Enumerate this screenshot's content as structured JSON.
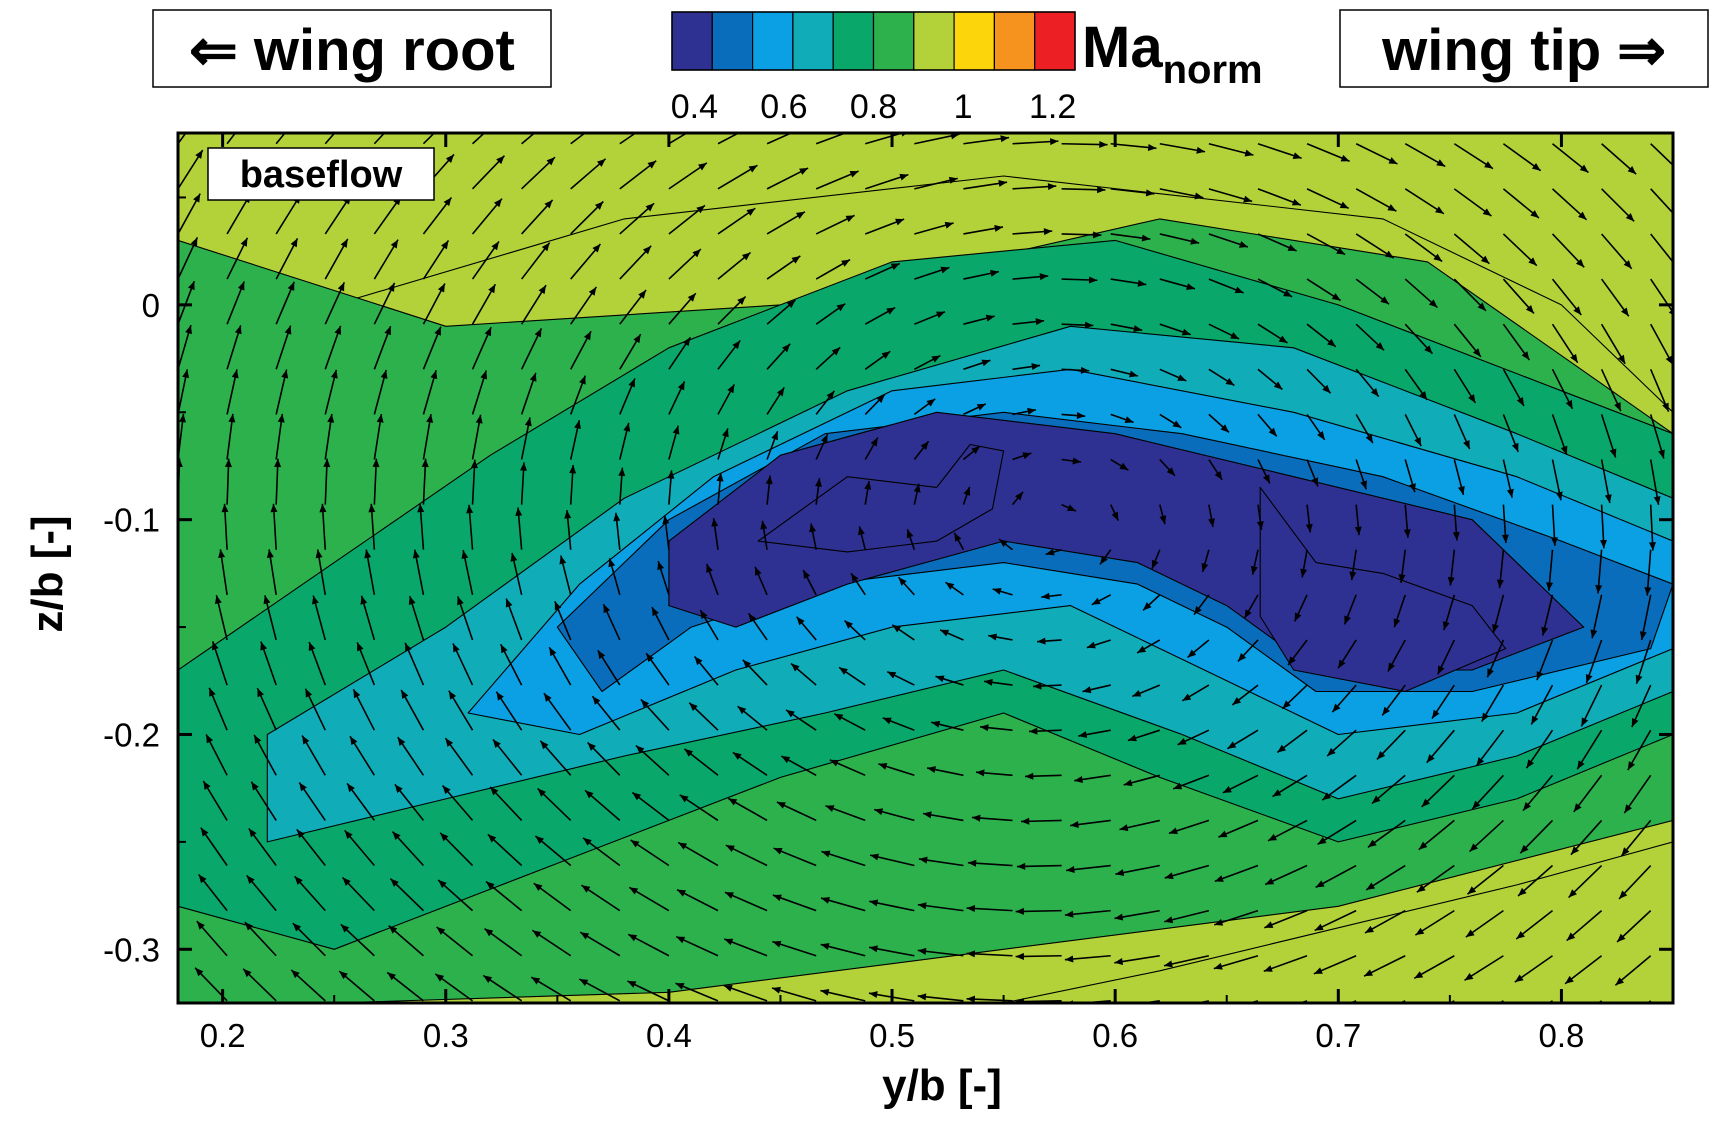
{
  "chart_data": {
    "type": "contour_vector",
    "colorbar": {
      "title": "Ma",
      "title_sub": "norm",
      "tick_labels": [
        "0.4",
        "0.6",
        "0.8",
        "1",
        "1.2"
      ],
      "tick_values": [
        0.4,
        0.6,
        0.8,
        1.0,
        1.2
      ],
      "levels": [
        0.35,
        0.45,
        0.55,
        0.65,
        0.75,
        0.85,
        0.95,
        1.05,
        1.15,
        1.25
      ],
      "colors": [
        "#2e3192",
        "#0a6dbc",
        "#0aa0e3",
        "#10adb9",
        "#09a86a",
        "#2db14c",
        "#b3d23a",
        "#fcd60a",
        "#f6921e",
        "#ec1f25"
      ]
    },
    "annotations": {
      "left_label": "⇐ wing root",
      "right_label": "wing tip ⇒",
      "case_label": "baseflow"
    },
    "xlabel": "y/b [-]",
    "ylabel": "z/b [-]",
    "xlim": [
      0.18,
      0.85
    ],
    "ylim": [
      -0.325,
      0.08
    ],
    "x_ticks": [
      0.2,
      0.3,
      0.4,
      0.5,
      0.6,
      0.7,
      0.8
    ],
    "x_tick_labels": [
      "0.2",
      "0.3",
      "0.4",
      "0.5",
      "0.6",
      "0.7",
      "0.8"
    ],
    "y_ticks": [
      0,
      -0.1,
      -0.2,
      -0.3
    ],
    "y_tick_labels": [
      "0",
      "-0.1",
      "-0.2",
      "-0.3"
    ],
    "contour_regions": [
      {
        "level": 1.0,
        "name": "yellow-outer-top",
        "polygon": [
          [
            0.18,
            0.08
          ],
          [
            0.85,
            0.08
          ],
          [
            0.85,
            -0.05
          ],
          [
            0.8,
            0.0
          ],
          [
            0.72,
            0.04
          ],
          [
            0.55,
            0.06
          ],
          [
            0.38,
            0.04
          ],
          [
            0.25,
            0.0
          ],
          [
            0.18,
            -0.07
          ]
        ]
      },
      {
        "level": 1.0,
        "name": "yellow-outer-bottom",
        "polygon": [
          [
            0.18,
            -0.325
          ],
          [
            0.85,
            -0.325
          ],
          [
            0.85,
            -0.25
          ],
          [
            0.78,
            -0.27
          ],
          [
            0.7,
            -0.29
          ],
          [
            0.62,
            -0.31
          ],
          [
            0.55,
            -0.325
          ]
        ]
      },
      {
        "level": 0.9,
        "name": "light-green",
        "polygon": [
          [
            0.18,
            0.03
          ],
          [
            0.3,
            -0.01
          ],
          [
            0.45,
            0.0
          ],
          [
            0.62,
            0.04
          ],
          [
            0.74,
            0.02
          ],
          [
            0.85,
            -0.06
          ],
          [
            0.85,
            -0.24
          ],
          [
            0.7,
            -0.28
          ],
          [
            0.55,
            -0.3
          ],
          [
            0.4,
            -0.32
          ],
          [
            0.25,
            -0.325
          ],
          [
            0.18,
            -0.325
          ]
        ]
      },
      {
        "level": 0.8,
        "name": "mid-green-ring",
        "polygon": [
          [
            0.18,
            -0.17
          ],
          [
            0.25,
            -0.12
          ],
          [
            0.32,
            -0.07
          ],
          [
            0.4,
            -0.02
          ],
          [
            0.5,
            0.02
          ],
          [
            0.6,
            0.03
          ],
          [
            0.7,
            0.0
          ],
          [
            0.8,
            -0.04
          ],
          [
            0.85,
            -0.06
          ],
          [
            0.85,
            -0.2
          ],
          [
            0.78,
            -0.23
          ],
          [
            0.7,
            -0.25
          ],
          [
            0.62,
            -0.22
          ],
          [
            0.55,
            -0.19
          ],
          [
            0.45,
            -0.22
          ],
          [
            0.35,
            -0.26
          ],
          [
            0.25,
            -0.3
          ],
          [
            0.18,
            -0.28
          ]
        ]
      },
      {
        "level": 0.7,
        "name": "green",
        "polygon": [
          [
            0.22,
            -0.2
          ],
          [
            0.3,
            -0.15
          ],
          [
            0.38,
            -0.09
          ],
          [
            0.48,
            -0.04
          ],
          [
            0.58,
            -0.01
          ],
          [
            0.68,
            -0.02
          ],
          [
            0.78,
            -0.06
          ],
          [
            0.85,
            -0.09
          ],
          [
            0.85,
            -0.18
          ],
          [
            0.78,
            -0.21
          ],
          [
            0.7,
            -0.23
          ],
          [
            0.63,
            -0.2
          ],
          [
            0.55,
            -0.17
          ],
          [
            0.47,
            -0.19
          ],
          [
            0.38,
            -0.21
          ],
          [
            0.3,
            -0.23
          ],
          [
            0.22,
            -0.25
          ]
        ]
      },
      {
        "level": 0.6,
        "name": "teal",
        "polygon": [
          [
            0.31,
            -0.19
          ],
          [
            0.36,
            -0.13
          ],
          [
            0.42,
            -0.08
          ],
          [
            0.5,
            -0.04
          ],
          [
            0.58,
            -0.03
          ],
          [
            0.68,
            -0.05
          ],
          [
            0.78,
            -0.08
          ],
          [
            0.85,
            -0.11
          ],
          [
            0.85,
            -0.16
          ],
          [
            0.78,
            -0.19
          ],
          [
            0.7,
            -0.2
          ],
          [
            0.64,
            -0.17
          ],
          [
            0.58,
            -0.14
          ],
          [
            0.5,
            -0.15
          ],
          [
            0.43,
            -0.17
          ],
          [
            0.36,
            -0.2
          ]
        ]
      },
      {
        "level": 0.5,
        "name": "light-blue",
        "polygon": [
          [
            0.35,
            -0.15
          ],
          [
            0.4,
            -0.1
          ],
          [
            0.47,
            -0.06
          ],
          [
            0.55,
            -0.05
          ],
          [
            0.63,
            -0.06
          ],
          [
            0.72,
            -0.08
          ],
          [
            0.8,
            -0.11
          ],
          [
            0.85,
            -0.13
          ],
          [
            0.84,
            -0.16
          ],
          [
            0.76,
            -0.18
          ],
          [
            0.69,
            -0.18
          ],
          [
            0.65,
            -0.15
          ],
          [
            0.61,
            -0.13
          ],
          [
            0.55,
            -0.12
          ],
          [
            0.47,
            -0.13
          ],
          [
            0.41,
            -0.15
          ],
          [
            0.37,
            -0.18
          ]
        ]
      },
      {
        "level": 0.4,
        "name": "blue",
        "polygon": [
          [
            0.4,
            -0.11
          ],
          [
            0.45,
            -0.07
          ],
          [
            0.52,
            -0.05
          ],
          [
            0.6,
            -0.06
          ],
          [
            0.68,
            -0.08
          ],
          [
            0.76,
            -0.1
          ],
          [
            0.81,
            -0.15
          ],
          [
            0.76,
            -0.17
          ],
          [
            0.69,
            -0.17
          ],
          [
            0.65,
            -0.14
          ],
          [
            0.61,
            -0.12
          ],
          [
            0.55,
            -0.11
          ],
          [
            0.48,
            -0.13
          ],
          [
            0.43,
            -0.15
          ],
          [
            0.4,
            -0.14
          ]
        ]
      },
      {
        "level": 0.35,
        "name": "dark-blue-left",
        "polygon": [
          [
            0.44,
            -0.11
          ],
          [
            0.48,
            -0.08
          ],
          [
            0.52,
            -0.085
          ],
          [
            0.535,
            -0.065
          ],
          [
            0.55,
            -0.068
          ],
          [
            0.545,
            -0.095
          ],
          [
            0.52,
            -0.11
          ],
          [
            0.48,
            -0.115
          ]
        ]
      },
      {
        "level": 0.35,
        "name": "dark-blue-right",
        "polygon": [
          [
            0.665,
            -0.085
          ],
          [
            0.69,
            -0.12
          ],
          [
            0.72,
            -0.125
          ],
          [
            0.76,
            -0.14
          ],
          [
            0.775,
            -0.16
          ],
          [
            0.73,
            -0.18
          ],
          [
            0.68,
            -0.17
          ],
          [
            0.665,
            -0.145
          ]
        ]
      }
    ],
    "vector_field_note": "Velocity arrows on regular grid; vortex rotating about (0.62, -0.12)."
  }
}
